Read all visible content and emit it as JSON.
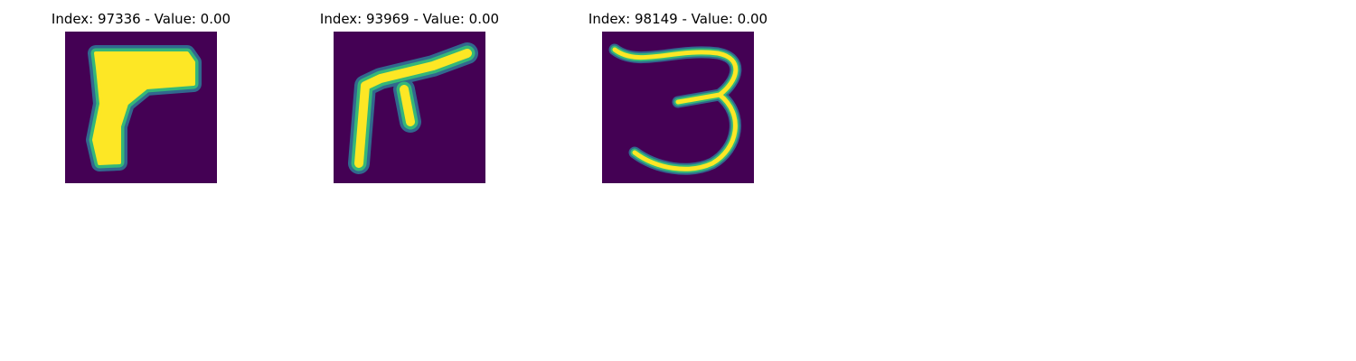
{
  "panels": [
    {
      "title": "Index: 97336 - Value: 0.00",
      "image_icon": "digit-7-shape-icon"
    },
    {
      "title": "Index: 93969 - Value: 0.00",
      "image_icon": "digit-7-shape-icon"
    },
    {
      "title": "Index: 98149 - Value: 0.00",
      "image_icon": "digit-3-icon"
    }
  ],
  "colors": {
    "background": "#440154",
    "mid_low": "#31688e",
    "mid": "#35b779",
    "high": "#fde725"
  }
}
